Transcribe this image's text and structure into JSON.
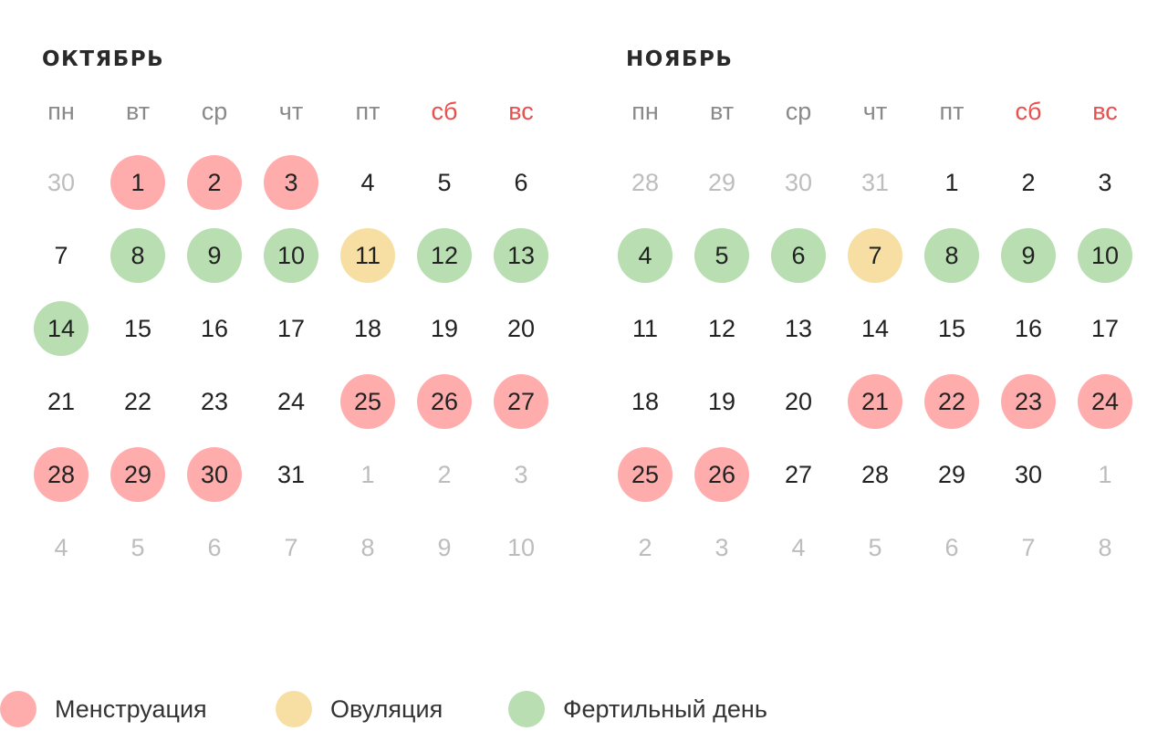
{
  "colors": {
    "menstruation": "#ffadac",
    "ovulation": "#f7dfa4",
    "fertile": "#b8deb2",
    "weekend_text": "#e8504f",
    "other_month_text": "#bdbdbd"
  },
  "weekdays": [
    "пн",
    "вт",
    "ср",
    "чт",
    "пт",
    "сб",
    "вс"
  ],
  "months": [
    {
      "title": "ОКТЯБРЬ",
      "days": [
        {
          "n": "30",
          "t": "other"
        },
        {
          "n": "1",
          "t": "men"
        },
        {
          "n": "2",
          "t": "men"
        },
        {
          "n": "3",
          "t": "men"
        },
        {
          "n": "4",
          "t": ""
        },
        {
          "n": "5",
          "t": ""
        },
        {
          "n": "6",
          "t": ""
        },
        {
          "n": "7",
          "t": ""
        },
        {
          "n": "8",
          "t": "fer"
        },
        {
          "n": "9",
          "t": "fer"
        },
        {
          "n": "10",
          "t": "fer"
        },
        {
          "n": "11",
          "t": "ovu"
        },
        {
          "n": "12",
          "t": "fer"
        },
        {
          "n": "13",
          "t": "fer"
        },
        {
          "n": "14",
          "t": "fer"
        },
        {
          "n": "15",
          "t": ""
        },
        {
          "n": "16",
          "t": ""
        },
        {
          "n": "17",
          "t": ""
        },
        {
          "n": "18",
          "t": ""
        },
        {
          "n": "19",
          "t": ""
        },
        {
          "n": "20",
          "t": ""
        },
        {
          "n": "21",
          "t": ""
        },
        {
          "n": "22",
          "t": ""
        },
        {
          "n": "23",
          "t": ""
        },
        {
          "n": "24",
          "t": ""
        },
        {
          "n": "25",
          "t": "men"
        },
        {
          "n": "26",
          "t": "men"
        },
        {
          "n": "27",
          "t": "men"
        },
        {
          "n": "28",
          "t": "men"
        },
        {
          "n": "29",
          "t": "men"
        },
        {
          "n": "30",
          "t": "men"
        },
        {
          "n": "31",
          "t": ""
        },
        {
          "n": "1",
          "t": "other"
        },
        {
          "n": "2",
          "t": "other"
        },
        {
          "n": "3",
          "t": "other"
        },
        {
          "n": "4",
          "t": "other"
        },
        {
          "n": "5",
          "t": "other"
        },
        {
          "n": "6",
          "t": "other"
        },
        {
          "n": "7",
          "t": "other"
        },
        {
          "n": "8",
          "t": "other"
        },
        {
          "n": "9",
          "t": "other"
        },
        {
          "n": "10",
          "t": "other"
        }
      ]
    },
    {
      "title": "НОЯБРЬ",
      "days": [
        {
          "n": "28",
          "t": "other"
        },
        {
          "n": "29",
          "t": "other"
        },
        {
          "n": "30",
          "t": "other"
        },
        {
          "n": "31",
          "t": "other"
        },
        {
          "n": "1",
          "t": ""
        },
        {
          "n": "2",
          "t": ""
        },
        {
          "n": "3",
          "t": ""
        },
        {
          "n": "4",
          "t": "fer"
        },
        {
          "n": "5",
          "t": "fer"
        },
        {
          "n": "6",
          "t": "fer"
        },
        {
          "n": "7",
          "t": "ovu"
        },
        {
          "n": "8",
          "t": "fer"
        },
        {
          "n": "9",
          "t": "fer"
        },
        {
          "n": "10",
          "t": "fer"
        },
        {
          "n": "11",
          "t": ""
        },
        {
          "n": "12",
          "t": ""
        },
        {
          "n": "13",
          "t": ""
        },
        {
          "n": "14",
          "t": ""
        },
        {
          "n": "15",
          "t": ""
        },
        {
          "n": "16",
          "t": ""
        },
        {
          "n": "17",
          "t": ""
        },
        {
          "n": "18",
          "t": ""
        },
        {
          "n": "19",
          "t": ""
        },
        {
          "n": "20",
          "t": ""
        },
        {
          "n": "21",
          "t": "men"
        },
        {
          "n": "22",
          "t": "men"
        },
        {
          "n": "23",
          "t": "men"
        },
        {
          "n": "24",
          "t": "men"
        },
        {
          "n": "25",
          "t": "men"
        },
        {
          "n": "26",
          "t": "men"
        },
        {
          "n": "27",
          "t": ""
        },
        {
          "n": "28",
          "t": ""
        },
        {
          "n": "29",
          "t": ""
        },
        {
          "n": "30",
          "t": ""
        },
        {
          "n": "1",
          "t": "other"
        },
        {
          "n": "2",
          "t": "other"
        },
        {
          "n": "3",
          "t": "other"
        },
        {
          "n": "4",
          "t": "other"
        },
        {
          "n": "5",
          "t": "other"
        },
        {
          "n": "6",
          "t": "other"
        },
        {
          "n": "7",
          "t": "other"
        },
        {
          "n": "8",
          "t": "other"
        }
      ]
    }
  ],
  "legend": {
    "menstruation": "Менструация",
    "ovulation": "Овуляция",
    "fertile": "Фертильный день"
  }
}
